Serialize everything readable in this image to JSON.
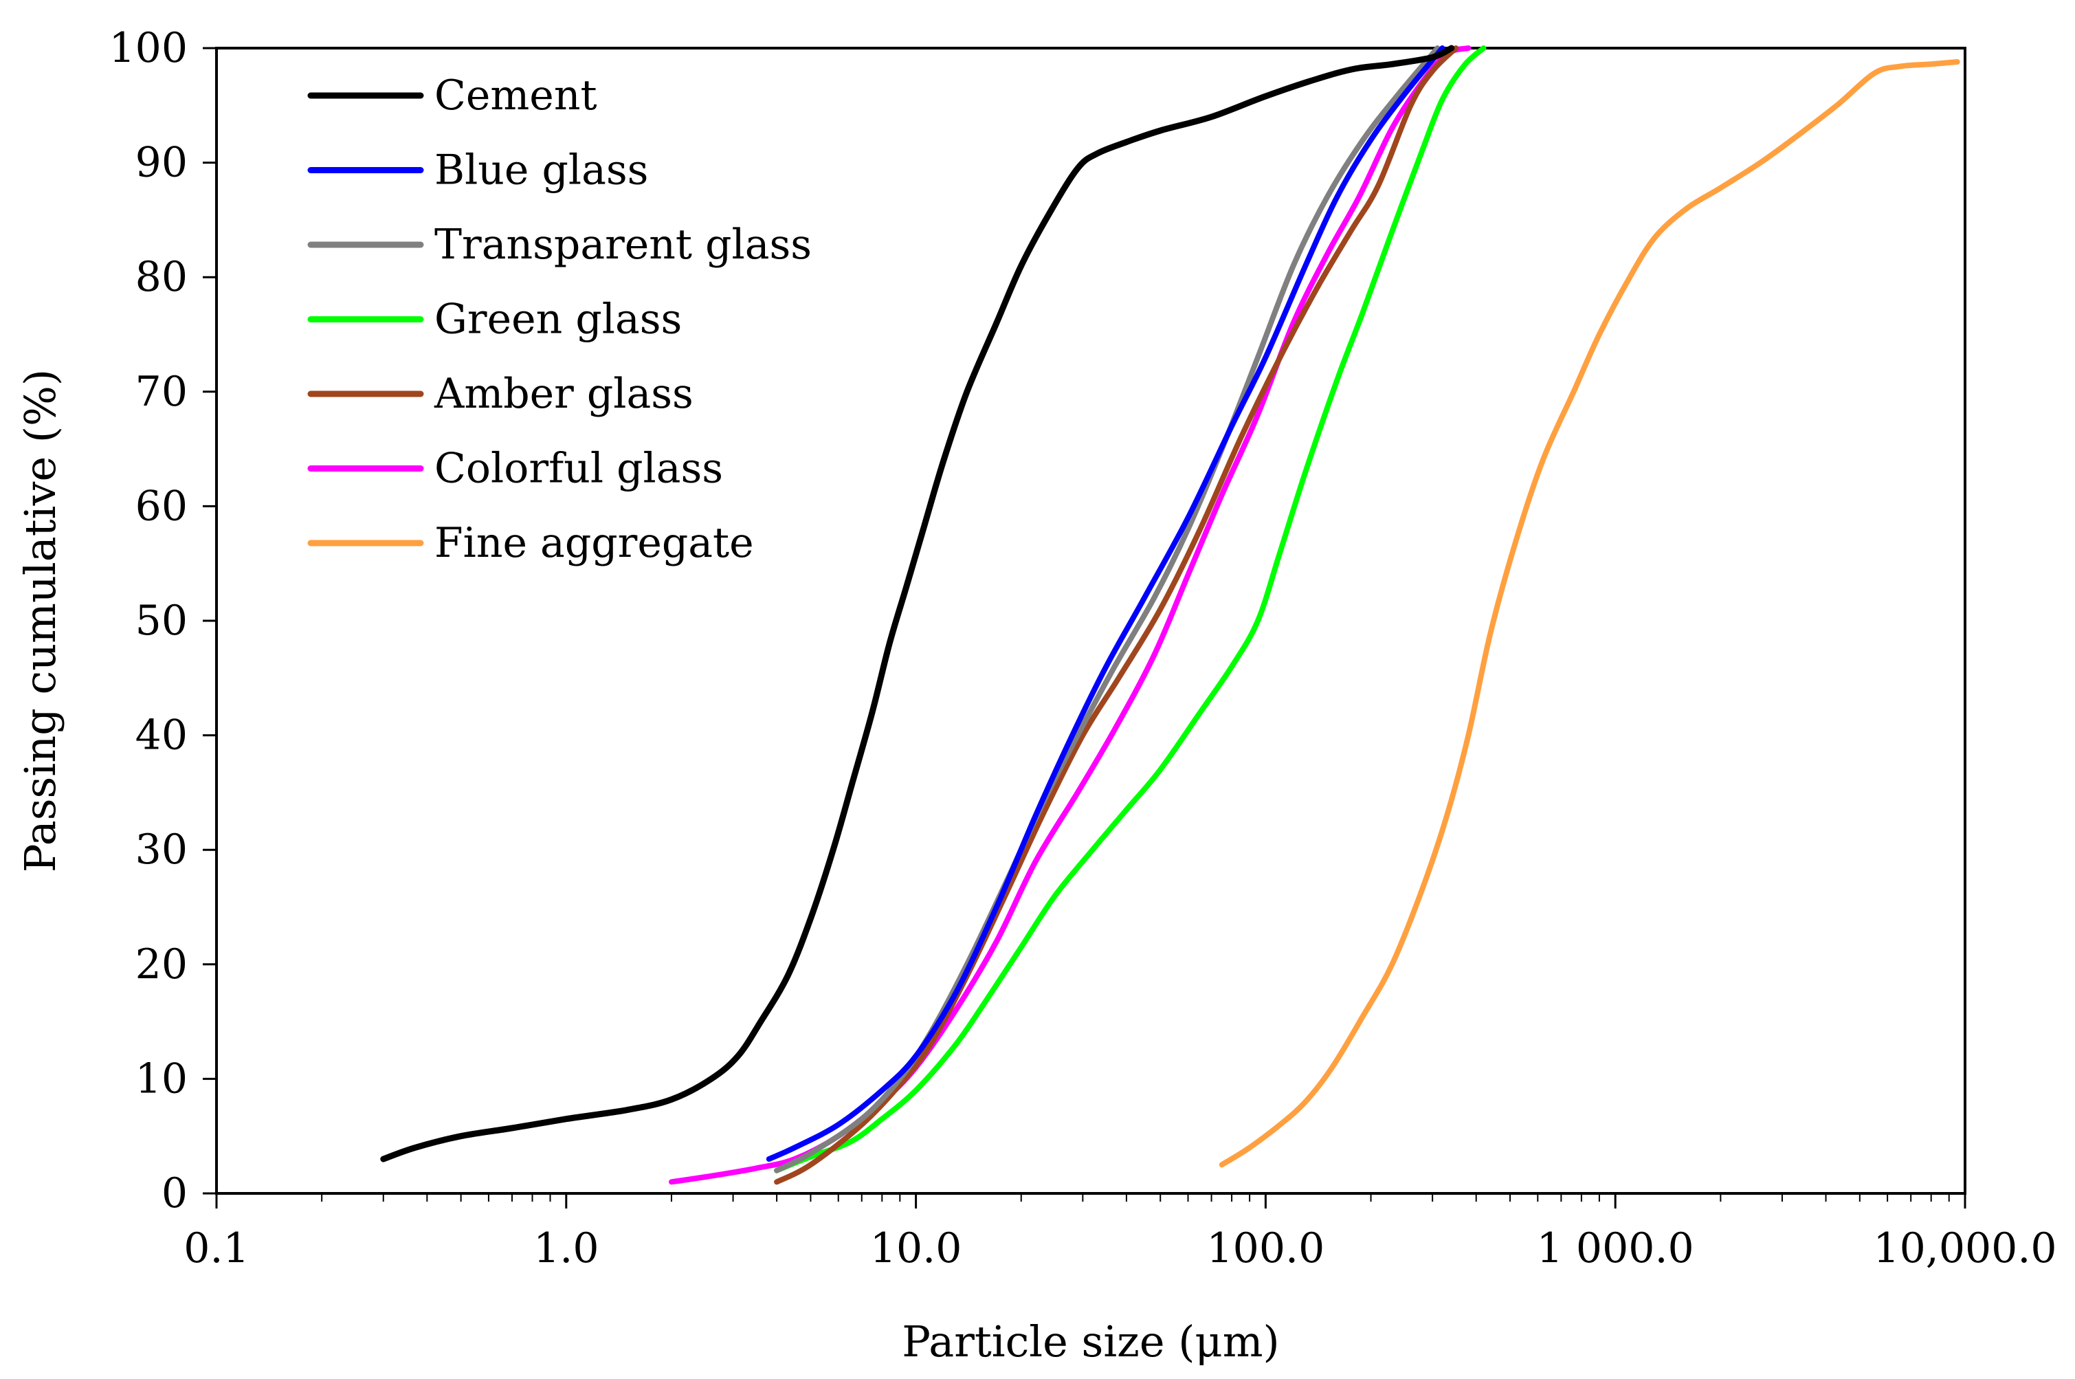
{
  "chart_data": {
    "type": "line",
    "title": "",
    "xlabel": "Particle size (μm)",
    "ylabel": "Passing cumulative (%)",
    "xscale": "log",
    "xlim": [
      0.1,
      10000
    ],
    "ylim": [
      0,
      100
    ],
    "grid": false,
    "legend_position": "top-left",
    "x_tick_labels": [
      "0.1",
      "1.0",
      "10.0",
      "100.0",
      "1 000.0",
      "10,000.0"
    ],
    "y_tick_labels": [
      "0",
      "10",
      "20",
      "30",
      "40",
      "50",
      "60",
      "70",
      "80",
      "90",
      "100"
    ],
    "series": [
      {
        "name": "Cement",
        "color": "#000000",
        "points": [
          [
            0.3,
            3
          ],
          [
            0.37,
            4
          ],
          [
            0.5,
            5
          ],
          [
            0.7,
            5.7
          ],
          [
            1.0,
            6.5
          ],
          [
            1.5,
            7.3
          ],
          [
            2.0,
            8.2
          ],
          [
            2.6,
            10
          ],
          [
            3.1,
            12
          ],
          [
            3.6,
            15
          ],
          [
            4.3,
            19
          ],
          [
            5.0,
            24
          ],
          [
            5.8,
            30
          ],
          [
            6.6,
            36
          ],
          [
            7.5,
            42
          ],
          [
            8.4,
            48
          ],
          [
            9.4,
            53
          ],
          [
            10.5,
            58
          ],
          [
            12,
            64
          ],
          [
            14,
            70
          ],
          [
            17,
            76
          ],
          [
            20,
            81
          ],
          [
            24,
            85.5
          ],
          [
            29,
            89.5
          ],
          [
            33,
            90.8
          ],
          [
            40,
            91.8
          ],
          [
            50,
            92.8
          ],
          [
            70,
            94
          ],
          [
            100,
            95.8
          ],
          [
            140,
            97.3
          ],
          [
            180,
            98.2
          ],
          [
            230,
            98.6
          ],
          [
            300,
            99.2
          ],
          [
            340,
            100
          ]
        ]
      },
      {
        "name": "Blue glass",
        "color": "#0000ff",
        "points": [
          [
            3.8,
            3
          ],
          [
            4.5,
            4
          ],
          [
            6,
            6
          ],
          [
            8,
            9
          ],
          [
            10,
            12
          ],
          [
            13,
            17.5
          ],
          [
            17,
            25
          ],
          [
            22,
            33
          ],
          [
            28,
            40
          ],
          [
            35,
            46
          ],
          [
            45,
            52
          ],
          [
            60,
            59
          ],
          [
            80,
            67
          ],
          [
            100,
            73
          ],
          [
            130,
            81
          ],
          [
            160,
            87
          ],
          [
            200,
            92
          ],
          [
            250,
            96
          ],
          [
            320,
            100
          ]
        ]
      },
      {
        "name": "Transparent glass",
        "color": "#808080",
        "points": [
          [
            4,
            2
          ],
          [
            5,
            3.5
          ],
          [
            7,
            6.5
          ],
          [
            9,
            10
          ],
          [
            11,
            14
          ],
          [
            14,
            20
          ],
          [
            18,
            27
          ],
          [
            23,
            34
          ],
          [
            29,
            40
          ],
          [
            37,
            46
          ],
          [
            48,
            52
          ],
          [
            60,
            58
          ],
          [
            75,
            65
          ],
          [
            95,
            73
          ],
          [
            120,
            81
          ],
          [
            150,
            87
          ],
          [
            190,
            92
          ],
          [
            240,
            96
          ],
          [
            310,
            100
          ]
        ]
      },
      {
        "name": "Green glass",
        "color": "#00ff00",
        "points": [
          [
            4,
            2
          ],
          [
            5,
            3.2
          ],
          [
            6.5,
            4.5
          ],
          [
            8,
            6.5
          ],
          [
            10,
            9
          ],
          [
            13,
            13
          ],
          [
            16,
            17
          ],
          [
            20,
            21.5
          ],
          [
            25,
            26
          ],
          [
            32,
            30
          ],
          [
            40,
            33.5
          ],
          [
            50,
            37
          ],
          [
            65,
            42
          ],
          [
            80,
            46
          ],
          [
            95,
            50
          ],
          [
            110,
            56
          ],
          [
            130,
            63
          ],
          [
            160,
            71
          ],
          [
            190,
            77
          ],
          [
            230,
            84
          ],
          [
            280,
            91
          ],
          [
            320,
            95.5
          ],
          [
            370,
            98.5
          ],
          [
            420,
            100
          ]
        ]
      },
      {
        "name": "Amber glass",
        "color": "#a0461e",
        "points": [
          [
            4,
            1
          ],
          [
            5,
            2.5
          ],
          [
            7,
            6
          ],
          [
            9,
            9.5
          ],
          [
            11,
            13
          ],
          [
            14,
            19
          ],
          [
            18,
            26
          ],
          [
            23,
            33
          ],
          [
            30,
            40
          ],
          [
            38,
            45
          ],
          [
            50,
            51
          ],
          [
            65,
            58
          ],
          [
            85,
            66
          ],
          [
            110,
            73
          ],
          [
            140,
            79
          ],
          [
            175,
            84
          ],
          [
            210,
            88
          ],
          [
            260,
            95
          ],
          [
            300,
            98
          ],
          [
            350,
            100
          ]
        ]
      },
      {
        "name": "Colorful glass",
        "color": "#ff00ff",
        "points": [
          [
            2,
            1
          ],
          [
            2.7,
            1.6
          ],
          [
            3.5,
            2.2
          ],
          [
            4.5,
            3
          ],
          [
            6,
            5
          ],
          [
            8,
            8
          ],
          [
            10,
            11
          ],
          [
            13,
            16
          ],
          [
            17,
            22
          ],
          [
            22,
            29
          ],
          [
            29,
            35
          ],
          [
            37,
            40.5
          ],
          [
            48,
            47
          ],
          [
            60,
            54
          ],
          [
            75,
            61
          ],
          [
            95,
            68
          ],
          [
            120,
            76
          ],
          [
            150,
            82
          ],
          [
            185,
            87
          ],
          [
            230,
            93
          ],
          [
            280,
            97
          ],
          [
            330,
            99.5
          ],
          [
            380,
            100
          ]
        ]
      },
      {
        "name": "Fine aggregate",
        "color": "#ffa040",
        "points": [
          [
            75,
            2.5
          ],
          [
            90,
            4
          ],
          [
            110,
            6
          ],
          [
            130,
            8
          ],
          [
            155,
            11
          ],
          [
            190,
            15.5
          ],
          [
            230,
            20
          ],
          [
            280,
            26.5
          ],
          [
            330,
            33
          ],
          [
            380,
            40
          ],
          [
            440,
            49
          ],
          [
            520,
            57
          ],
          [
            620,
            64
          ],
          [
            760,
            70
          ],
          [
            900,
            75
          ],
          [
            1100,
            80
          ],
          [
            1300,
            83.5
          ],
          [
            1600,
            86
          ],
          [
            2000,
            87.8
          ],
          [
            2600,
            90
          ],
          [
            3300,
            92.3
          ],
          [
            4300,
            95
          ],
          [
            5500,
            97.8
          ],
          [
            6500,
            98.4
          ],
          [
            8000,
            98.6
          ],
          [
            9500,
            98.8
          ]
        ]
      }
    ]
  }
}
